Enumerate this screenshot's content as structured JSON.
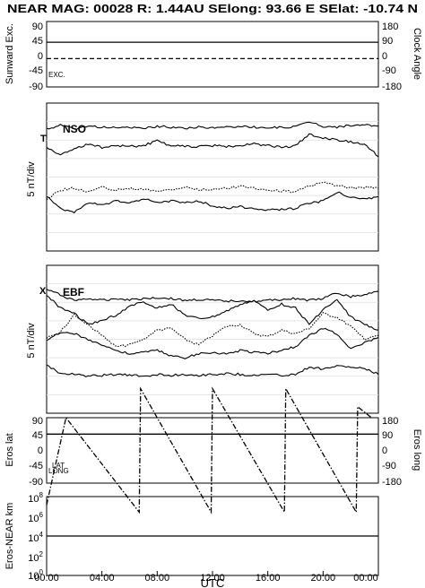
{
  "header": {
    "title": "NEAR MAG: 00028  R: 1.44AU  SElong:   93.66 E  SElat:  -10.74 N"
  },
  "chart_data": [
    {
      "type": "line",
      "panel": "sunward",
      "ylabel": "Sunward Exc.",
      "ylabel_right": "Clock Angle",
      "ylim": [
        -90,
        90
      ],
      "yticks": [
        "90",
        "45",
        "0",
        "-45",
        "-90"
      ],
      "ylim_right": [
        -180,
        180
      ],
      "yticks_right": [
        "180",
        "90",
        "0",
        "-90",
        "-180"
      ],
      "annotations": [
        "EXC."
      ],
      "series": [
        {
          "style": "solid",
          "values": [
            [
              0,
              33
            ],
            [
              24,
              33
            ]
          ]
        },
        {
          "style": "dashed",
          "values": [
            [
              0,
              -12
            ],
            [
              24,
              -12
            ]
          ]
        }
      ]
    },
    {
      "type": "line",
      "panel": "nso",
      "label": "NSO",
      "marker_label": "T",
      "ylabel": "5 nT/div",
      "divisions": 8,
      "series": [
        {
          "style": "solid",
          "values": [
            [
              0,
              1.4
            ],
            [
              1,
              1.2
            ],
            [
              2,
              1.4
            ],
            [
              3,
              1.25
            ],
            [
              4,
              1.3
            ],
            [
              5,
              1.35
            ],
            [
              6,
              1.3
            ],
            [
              7,
              1.4
            ],
            [
              8,
              1.25
            ],
            [
              9,
              1.3
            ],
            [
              10,
              1.35
            ],
            [
              11,
              1.3
            ],
            [
              12,
              1.35
            ],
            [
              13,
              1.3
            ],
            [
              14,
              1.25
            ],
            [
              15,
              1.3
            ],
            [
              16,
              1.35
            ],
            [
              17,
              1.3
            ],
            [
              18,
              1.3
            ],
            [
              19,
              1.0
            ],
            [
              20,
              1.25
            ],
            [
              21,
              1.3
            ],
            [
              22,
              1.2
            ],
            [
              23,
              1.2
            ],
            [
              24,
              1.25
            ]
          ]
        },
        {
          "style": "solid",
          "values": [
            [
              0,
              2.4
            ],
            [
              1,
              2.8
            ],
            [
              2,
              2.5
            ],
            [
              3,
              2.2
            ],
            [
              4,
              2.4
            ],
            [
              5,
              2.3
            ],
            [
              6,
              2.35
            ],
            [
              7,
              2.3
            ],
            [
              8,
              2.05
            ],
            [
              9,
              2.3
            ],
            [
              10,
              2.35
            ],
            [
              11,
              2.35
            ],
            [
              12,
              2.3
            ],
            [
              13,
              2.35
            ],
            [
              14,
              2.3
            ],
            [
              15,
              2.2
            ],
            [
              16,
              2.3
            ],
            [
              17,
              2.4
            ],
            [
              18,
              2.3
            ],
            [
              19,
              1.7
            ],
            [
              20,
              1.9
            ],
            [
              21,
              2.0
            ],
            [
              22,
              2.1
            ],
            [
              23,
              2.2
            ],
            [
              24,
              2.9
            ]
          ]
        },
        {
          "style": "dotted",
          "values": [
            [
              0,
              5.2
            ],
            [
              1,
              4.7
            ],
            [
              2,
              4.6
            ],
            [
              3,
              4.8
            ],
            [
              4,
              4.55
            ],
            [
              5,
              4.7
            ],
            [
              6,
              4.6
            ],
            [
              7,
              4.7
            ],
            [
              8,
              4.75
            ],
            [
              9,
              4.7
            ],
            [
              10,
              4.55
            ],
            [
              11,
              4.7
            ],
            [
              12,
              4.65
            ],
            [
              13,
              4.6
            ],
            [
              14,
              4.5
            ],
            [
              15,
              4.6
            ],
            [
              16,
              4.7
            ],
            [
              17,
              4.75
            ],
            [
              18,
              4.8
            ],
            [
              19,
              4.5
            ],
            [
              20,
              4.3
            ],
            [
              21,
              4.45
            ],
            [
              22,
              4.6
            ],
            [
              23,
              4.55
            ],
            [
              24,
              4.6
            ]
          ]
        },
        {
          "style": "solid",
          "values": [
            [
              0,
              5.0
            ],
            [
              1,
              5.7
            ],
            [
              2,
              5.9
            ],
            [
              3,
              5.4
            ],
            [
              4,
              5.5
            ],
            [
              5,
              5.3
            ],
            [
              6,
              5.4
            ],
            [
              7,
              5.2
            ],
            [
              8,
              5.35
            ],
            [
              9,
              5.3
            ],
            [
              10,
              5.4
            ],
            [
              11,
              5.3
            ],
            [
              12,
              5.55
            ],
            [
              13,
              5.7
            ],
            [
              14,
              5.6
            ],
            [
              15,
              5.75
            ],
            [
              16,
              5.8
            ],
            [
              17,
              5.75
            ],
            [
              18,
              5.7
            ],
            [
              19,
              5.4
            ],
            [
              20,
              5.3
            ],
            [
              21,
              4.8
            ],
            [
              22,
              5.1
            ],
            [
              23,
              5.2
            ],
            [
              24,
              5.05
            ]
          ]
        }
      ]
    },
    {
      "type": "line",
      "panel": "ebf",
      "label": "EBF",
      "marker_label": "X",
      "ylabel": "5 nT/div",
      "divisions": 8,
      "series": [
        {
          "style": "solid",
          "values": [
            [
              0,
              1.3
            ],
            [
              1,
              1.6
            ],
            [
              2,
              1.9
            ],
            [
              3,
              1.8
            ],
            [
              4,
              1.9
            ],
            [
              5,
              1.8
            ],
            [
              6,
              1.85
            ],
            [
              7,
              1.8
            ],
            [
              8,
              1.75
            ],
            [
              9,
              1.8
            ],
            [
              10,
              1.9
            ],
            [
              11,
              1.85
            ],
            [
              12,
              1.9
            ],
            [
              13,
              1.95
            ],
            [
              14,
              1.9
            ],
            [
              15,
              1.95
            ],
            [
              16,
              1.9
            ],
            [
              17,
              1.85
            ],
            [
              18,
              1.8
            ],
            [
              19,
              1.9
            ],
            [
              20,
              1.8
            ],
            [
              21,
              1.5
            ],
            [
              22,
              1.7
            ],
            [
              23,
              1.6
            ],
            [
              24,
              1.4
            ]
          ]
        },
        {
          "style": "solid",
          "values": [
            [
              0,
              1.6
            ],
            [
              1,
              2.3
            ],
            [
              2,
              2.6
            ],
            [
              3,
              3.2
            ],
            [
              4,
              3.0
            ],
            [
              5,
              2.7
            ],
            [
              6,
              2.2
            ],
            [
              7,
              2.0
            ],
            [
              8,
              2.3
            ],
            [
              9,
              2.1
            ],
            [
              10,
              2.7
            ],
            [
              11,
              2.9
            ],
            [
              12,
              2.8
            ],
            [
              13,
              2.5
            ],
            [
              14,
              2.1
            ],
            [
              15,
              1.95
            ],
            [
              16,
              2.4
            ],
            [
              17,
              2.1
            ],
            [
              18,
              2.3
            ],
            [
              19,
              3.2
            ],
            [
              20,
              2.4
            ],
            [
              21,
              1.9
            ],
            [
              22,
              2.8
            ],
            [
              23,
              3.2
            ],
            [
              24,
              3.5
            ]
          ]
        },
        {
          "style": "dotted",
          "values": [
            [
              0,
              3.9
            ],
            [
              1,
              3.6
            ],
            [
              2,
              2.7
            ],
            [
              3,
              3.2
            ],
            [
              4,
              3.8
            ],
            [
              5,
              4.4
            ],
            [
              6,
              4.3
            ],
            [
              7,
              4.0
            ],
            [
              8,
              3.5
            ],
            [
              9,
              3.4
            ],
            [
              10,
              4.0
            ],
            [
              11,
              4.3
            ],
            [
              12,
              3.8
            ],
            [
              13,
              3.3
            ],
            [
              14,
              3.2
            ],
            [
              15,
              3.7
            ],
            [
              16,
              3.85
            ],
            [
              17,
              3.5
            ],
            [
              18,
              3.7
            ],
            [
              19,
              3.4
            ],
            [
              20,
              2.6
            ],
            [
              21,
              2.8
            ],
            [
              22,
              3.3
            ],
            [
              23,
              4.0
            ],
            [
              24,
              3.8
            ]
          ]
        },
        {
          "style": "solid",
          "values": [
            [
              0,
              4.1
            ],
            [
              1,
              3.6
            ],
            [
              2,
              3.7
            ],
            [
              3,
              4.0
            ],
            [
              4,
              4.3
            ],
            [
              5,
              4.6
            ],
            [
              6,
              4.8
            ],
            [
              7,
              4.7
            ],
            [
              8,
              4.6
            ],
            [
              9,
              4.9
            ],
            [
              10,
              5.0
            ],
            [
              11,
              4.8
            ],
            [
              12,
              4.7
            ],
            [
              13,
              4.8
            ],
            [
              14,
              4.6
            ],
            [
              15,
              4.7
            ],
            [
              16,
              4.75
            ],
            [
              17,
              4.6
            ],
            [
              18,
              4.4
            ],
            [
              19,
              3.8
            ],
            [
              20,
              3.4
            ],
            [
              21,
              3.7
            ],
            [
              22,
              4.5
            ],
            [
              23,
              4.2
            ],
            [
              24,
              3.9
            ]
          ]
        },
        {
          "style": "solid",
          "values": [
            [
              0,
              5.4
            ],
            [
              1,
              5.85
            ],
            [
              2,
              5.9
            ],
            [
              3,
              6.0
            ],
            [
              4,
              5.95
            ],
            [
              5,
              5.9
            ],
            [
              6,
              5.95
            ],
            [
              7,
              6.0
            ],
            [
              8,
              5.9
            ],
            [
              9,
              5.95
            ],
            [
              10,
              5.9
            ],
            [
              11,
              5.95
            ],
            [
              12,
              5.9
            ],
            [
              13,
              5.85
            ],
            [
              14,
              5.9
            ],
            [
              15,
              5.95
            ],
            [
              16,
              5.9
            ],
            [
              17,
              5.95
            ],
            [
              18,
              5.9
            ],
            [
              19,
              5.5
            ],
            [
              20,
              5.6
            ],
            [
              21,
              5.45
            ],
            [
              22,
              5.5
            ],
            [
              23,
              5.6
            ],
            [
              24,
              5.9
            ]
          ]
        }
      ]
    },
    {
      "type": "line",
      "panel": "eros",
      "ylabel": "Eros lat",
      "ylabel_right": "Eros long",
      "ylim": [
        -90,
        90
      ],
      "yticks": [
        "90",
        "45",
        "0",
        "-45",
        "-90"
      ],
      "ylim_right": [
        -180,
        180
      ],
      "yticks_right": [
        "180",
        "90",
        "0",
        "-90",
        "-180"
      ],
      "annotations": [
        "LAT",
        "LONG"
      ],
      "series": [
        {
          "style": "solid",
          "values": [
            [
              0,
              45
            ],
            [
              24,
              45
            ]
          ]
        },
        {
          "style": "dashdot",
          "values": [
            [
              0,
              -150
            ],
            [
              1.4,
              90
            ],
            [
              6.7,
              -170
            ],
            [
              6.8,
              170
            ],
            [
              11.9,
              -170
            ],
            [
              12,
              170
            ],
            [
              17.2,
              -170
            ],
            [
              17.3,
              170
            ],
            [
              22.4,
              -170
            ],
            [
              22.5,
              120
            ],
            [
              23.5,
              90
            ]
          ]
        }
      ]
    },
    {
      "type": "line",
      "panel": "distance",
      "ylabel": "Eros-NEAR km",
      "yscale": "log",
      "ylim": [
        1,
        100000000
      ],
      "yticks": [
        "10^8",
        "10^6",
        "10^4",
        "10^2",
        "10^0"
      ],
      "series": [
        {
          "style": "solid",
          "values": [
            [
              0,
              10000
            ],
            [
              24,
              10000
            ]
          ]
        }
      ]
    }
  ],
  "xaxis": {
    "ticks": [
      "00:00",
      "04:00",
      "08:00",
      "12:00",
      "16:00",
      "20:00",
      "00:00"
    ],
    "xlim": [
      0,
      24
    ],
    "label": "UTC"
  }
}
